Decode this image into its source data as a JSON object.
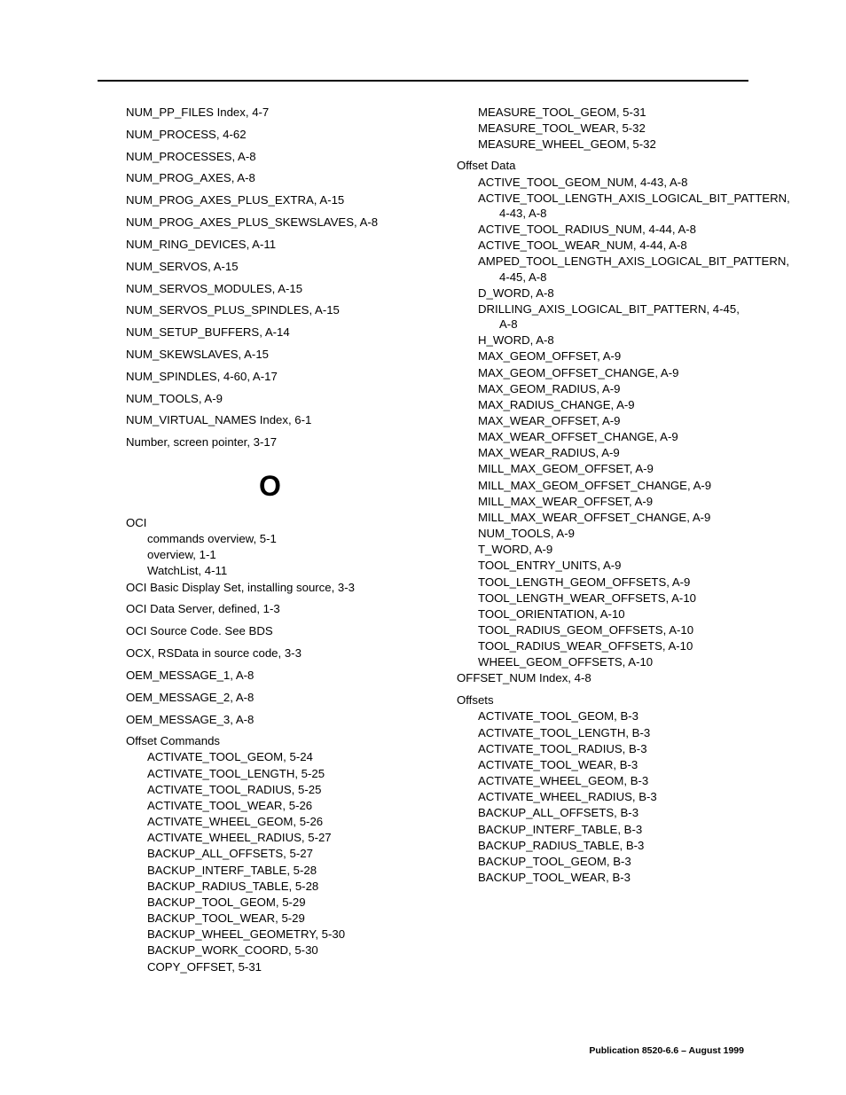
{
  "left": [
    {
      "t": "e",
      "txt": "NUM_PP_FILES Index, 4-7"
    },
    {
      "t": "e",
      "txt": "NUM_PROCESS, 4-62"
    },
    {
      "t": "e",
      "txt": "NUM_PROCESSES, A-8"
    },
    {
      "t": "e",
      "txt": "NUM_PROG_AXES, A-8"
    },
    {
      "t": "e",
      "txt": "NUM_PROG_AXES_PLUS_EXTRA, A-15"
    },
    {
      "t": "c2",
      "txt": "NUM_PROG_AXES_PLUS_SKEWSLAVES, A-8"
    },
    {
      "t": "e",
      "txt": "NUM_RING_DEVICES, A-11"
    },
    {
      "t": "e",
      "txt": "NUM_SERVOS, A-15"
    },
    {
      "t": "e",
      "txt": "NUM_SERVOS_MODULES, A-15"
    },
    {
      "t": "e",
      "txt": "NUM_SERVOS_PLUS_SPINDLES, A-15"
    },
    {
      "t": "e",
      "txt": "NUM_SETUP_BUFFERS, A-14"
    },
    {
      "t": "e",
      "txt": "NUM_SKEWSLAVES, A-15"
    },
    {
      "t": "e",
      "txt": "NUM_SPINDLES, 4-60, A-17"
    },
    {
      "t": "e",
      "txt": "NUM_TOOLS, A-9"
    },
    {
      "t": "e",
      "txt": "NUM_VIRTUAL_NAMES Index, 6-1"
    },
    {
      "t": "e",
      "txt": "Number, screen pointer, 3-17"
    },
    {
      "t": "h",
      "txt": "O"
    },
    {
      "t": "g",
      "txt": "OCI"
    },
    {
      "t": "s",
      "txt": "commands overview, 5-1"
    },
    {
      "t": "s",
      "txt": "overview, 1-1"
    },
    {
      "t": "s",
      "txt": "WatchList, 4-11"
    },
    {
      "t": "c2",
      "txt": "OCI Basic Display Set, installing source, 3-3"
    },
    {
      "t": "e",
      "txt": "OCI Data Server, defined, 1-3"
    },
    {
      "t": "e",
      "txt": "OCI Source Code. See BDS"
    },
    {
      "t": "e",
      "txt": "OCX, RSData in source code, 3-3"
    },
    {
      "t": "e",
      "txt": "OEM_MESSAGE_1, A-8"
    },
    {
      "t": "e",
      "txt": "OEM_MESSAGE_2, A-8"
    },
    {
      "t": "e",
      "txt": "OEM_MESSAGE_3, A-8"
    },
    {
      "t": "g",
      "txt": "Offset Commands"
    },
    {
      "t": "s",
      "txt": "ACTIVATE_TOOL_GEOM, 5-24"
    },
    {
      "t": "s",
      "txt": "ACTIVATE_TOOL_LENGTH, 5-25"
    },
    {
      "t": "s",
      "txt": "ACTIVATE_TOOL_RADIUS, 5-25"
    },
    {
      "t": "s",
      "txt": "ACTIVATE_TOOL_WEAR, 5-26"
    },
    {
      "t": "s",
      "txt": "ACTIVATE_WHEEL_GEOM, 5-26"
    },
    {
      "t": "s",
      "txt": "ACTIVATE_WHEEL_RADIUS, 5-27"
    },
    {
      "t": "s",
      "txt": "BACKUP_ALL_OFFSETS, 5-27"
    },
    {
      "t": "s",
      "txt": "BACKUP_INTERF_TABLE, 5-28"
    },
    {
      "t": "s",
      "txt": "BACKUP_RADIUS_TABLE, 5-28"
    },
    {
      "t": "s",
      "txt": "BACKUP_TOOL_GEOM, 5-29"
    },
    {
      "t": "s",
      "txt": "BACKUP_TOOL_WEAR, 5-29"
    },
    {
      "t": "s",
      "txt": "BACKUP_WHEEL_GEOMETRY, 5-30"
    },
    {
      "t": "s",
      "txt": "BACKUP_WORK_COORD, 5-30"
    },
    {
      "t": "s",
      "txt": "COPY_OFFSET, 5-31"
    }
  ],
  "right": [
    {
      "t": "s",
      "txt": "MEASURE_TOOL_GEOM, 5-31"
    },
    {
      "t": "s",
      "txt": "MEASURE_TOOL_WEAR, 5-32"
    },
    {
      "t": "s",
      "txt": "MEASURE_WHEEL_GEOM, 5-32"
    },
    {
      "t": "g",
      "txt": "Offset Data"
    },
    {
      "t": "c",
      "txt": "ACTIVE_TOOL_GEOM_NUM, 4-43, A-8"
    },
    {
      "t": "c",
      "txt": "ACTIVE_TOOL_LENGTH_AXIS_LOGICAL_BIT_PATTERN, 4-43, A-8"
    },
    {
      "t": "c",
      "txt": "ACTIVE_TOOL_RADIUS_NUM, 4-44, A-8"
    },
    {
      "t": "c",
      "txt": "ACTIVE_TOOL_WEAR_NUM, 4-44, A-8"
    },
    {
      "t": "c",
      "txt": "AMPED_TOOL_LENGTH_AXIS_LOGICAL_BIT_PATTERN, 4-45, A-8"
    },
    {
      "t": "s",
      "txt": "D_WORD, A-8"
    },
    {
      "t": "c",
      "txt": "DRILLING_AXIS_LOGICAL_BIT_PATTERN, 4-45, A-8"
    },
    {
      "t": "s",
      "txt": "H_WORD, A-8"
    },
    {
      "t": "s",
      "txt": "MAX_GEOM_OFFSET, A-9"
    },
    {
      "t": "s",
      "txt": "MAX_GEOM_OFFSET_CHANGE, A-9"
    },
    {
      "t": "s",
      "txt": "MAX_GEOM_RADIUS, A-9"
    },
    {
      "t": "s",
      "txt": "MAX_RADIUS_CHANGE, A-9"
    },
    {
      "t": "s",
      "txt": "MAX_WEAR_OFFSET, A-9"
    },
    {
      "t": "s",
      "txt": "MAX_WEAR_OFFSET_CHANGE, A-9"
    },
    {
      "t": "s",
      "txt": "MAX_WEAR_RADIUS, A-9"
    },
    {
      "t": "s",
      "txt": "MILL_MAX_GEOM_OFFSET, A-9"
    },
    {
      "t": "c",
      "txt": "MILL_MAX_GEOM_OFFSET_CHANGE, A-9"
    },
    {
      "t": "s",
      "txt": "MILL_MAX_WEAR_OFFSET, A-9"
    },
    {
      "t": "c",
      "txt": "MILL_MAX_WEAR_OFFSET_CHANGE, A-9"
    },
    {
      "t": "s",
      "txt": "NUM_TOOLS, A-9"
    },
    {
      "t": "s",
      "txt": "T_WORD, A-9"
    },
    {
      "t": "s",
      "txt": "TOOL_ENTRY_UNITS, A-9"
    },
    {
      "t": "s",
      "txt": "TOOL_LENGTH_GEOM_OFFSETS, A-9"
    },
    {
      "t": "c",
      "txt": "TOOL_LENGTH_WEAR_OFFSETS, A-10"
    },
    {
      "t": "s",
      "txt": "TOOL_ORIENTATION, A-10"
    },
    {
      "t": "c",
      "txt": "TOOL_RADIUS_GEOM_OFFSETS, A-10"
    },
    {
      "t": "c",
      "txt": "TOOL_RADIUS_WEAR_OFFSETS, A-10"
    },
    {
      "t": "s",
      "txt": "WHEEL_GEOM_OFFSETS, A-10"
    },
    {
      "t": "e",
      "txt": "OFFSET_NUM Index, 4-8"
    },
    {
      "t": "g",
      "txt": "Offsets"
    },
    {
      "t": "s",
      "txt": "ACTIVATE_TOOL_GEOM, B-3"
    },
    {
      "t": "s",
      "txt": "ACTIVATE_TOOL_LENGTH, B-3"
    },
    {
      "t": "s",
      "txt": "ACTIVATE_TOOL_RADIUS, B-3"
    },
    {
      "t": "s",
      "txt": "ACTIVATE_TOOL_WEAR, B-3"
    },
    {
      "t": "s",
      "txt": "ACTIVATE_WHEEL_GEOM, B-3"
    },
    {
      "t": "s",
      "txt": "ACTIVATE_WHEEL_RADIUS, B-3"
    },
    {
      "t": "s",
      "txt": "BACKUP_ALL_OFFSETS, B-3"
    },
    {
      "t": "s",
      "txt": "BACKUP_INTERF_TABLE, B-3"
    },
    {
      "t": "s",
      "txt": "BACKUP_RADIUS_TABLE, B-3"
    },
    {
      "t": "s",
      "txt": "BACKUP_TOOL_GEOM, B-3"
    },
    {
      "t": "s",
      "txt": "BACKUP_TOOL_WEAR, B-3"
    }
  ],
  "footer": "Publication 8520-6.6 – August 1999"
}
